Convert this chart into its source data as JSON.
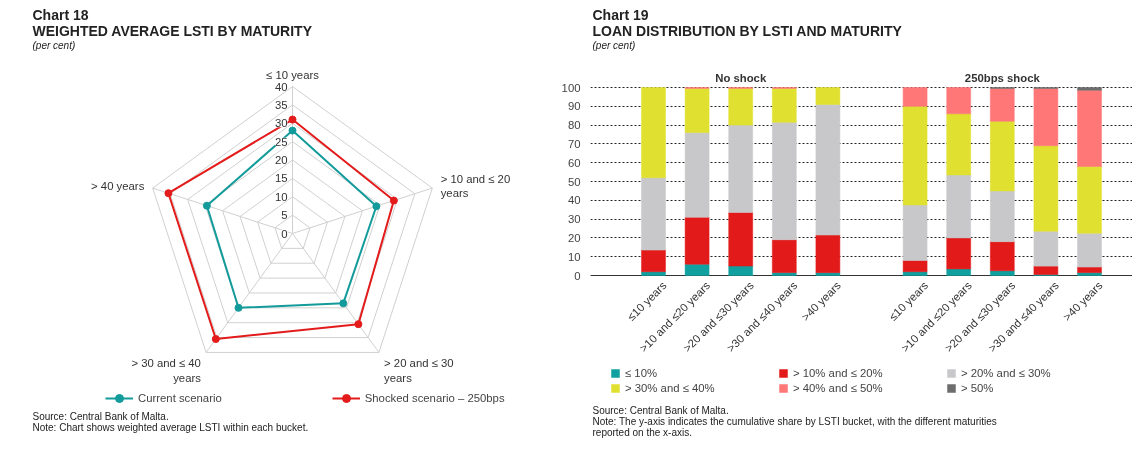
{
  "chart_data": [
    {
      "type": "radar",
      "title": "Chart 18",
      "subtitle": "WEIGHTED AVERAGE LSTI BY MATURITY",
      "ylabel": "(per cent)",
      "categories": [
        "≤ 10 years",
        "> 10 and ≤ 20 years",
        "> 20 and ≤ 30 years",
        "> 30 and ≤ 40 years",
        "> 40 years"
      ],
      "series": [
        {
          "name": "Current scenario",
          "color": "#139b9b",
          "values": [
            28,
            24,
            23.5,
            25,
            24.5
          ]
        },
        {
          "name": "Shocked scenario – 250bps",
          "color": "#e31b1b",
          "values": [
            31,
            29,
            30.5,
            35.5,
            35.5
          ]
        }
      ],
      "ylim": [
        0,
        40
      ],
      "yticks": [
        0,
        5,
        10,
        15,
        20,
        25,
        30,
        35,
        40
      ],
      "marker": "circle",
      "legend": "bottom",
      "grid": true,
      "annotations": [
        "Source: Central Bank of Malta.",
        "Note: Chart shows weighted average LSTI within each bucket."
      ]
    },
    {
      "type": "bar",
      "stacked": true,
      "title": "Chart 19",
      "subtitle": "LOAN DISTRIBUTION BY LSTI AND MATURITY",
      "ylabel": "(per cent)",
      "categories": [
        "≤10 years",
        ">10 and ≤20 years",
        ">20 and ≤30 years",
        ">30 and ≤40 years",
        ">40 years",
        null,
        "≤10 years",
        ">10 and ≤20 years",
        ">20 and ≤30 years",
        ">30 and ≤40 years",
        ">40 years"
      ],
      "series": [
        {
          "name": "≤ 10%",
          "color": "#10a0a0",
          "values": [
            2,
            6,
            5,
            1.5,
            1.5,
            null,
            2,
            3.5,
            2.5,
            0.5,
            1.5
          ]
        },
        {
          "name": "> 10% and ≤ 20%",
          "color": "#e31a1a",
          "values": [
            11.5,
            25,
            28.5,
            17.5,
            20,
            null,
            6,
            16.5,
            15.5,
            4.5,
            3
          ]
        },
        {
          "name": "> 20% and ≤ 30%",
          "color": "#c8c8ca",
          "values": [
            38.5,
            45,
            46.5,
            62.5,
            69.5,
            null,
            29.5,
            33.5,
            27,
            18.5,
            18
          ]
        },
        {
          "name": "> 30% and ≤ 40%",
          "color": "#e0e030",
          "values": [
            48,
            23.5,
            19.5,
            18,
            9,
            null,
            52.5,
            32.5,
            37,
            45.5,
            35.5
          ]
        },
        {
          "name": "> 40% and ≤ 50%",
          "color": "#ff7777",
          "values": [
            0,
            0.5,
            0.5,
            0.5,
            0,
            null,
            10,
            14,
            17.5,
            30.5,
            40.5
          ]
        },
        {
          "name": "> 50%",
          "color": "#6d6d6d",
          "values": [
            0,
            0,
            0,
            0,
            0,
            null,
            0,
            0,
            0.5,
            0.5,
            1.5
          ]
        }
      ],
      "ylim": [
        0,
        100
      ],
      "yticks": [
        0,
        10,
        20,
        30,
        40,
        50,
        60,
        70,
        80,
        90,
        100
      ],
      "grid": "y",
      "legend": "bottom",
      "annotations": [
        "No shock",
        "250bps shock",
        "Source: Central Bank of Malta.",
        "Note: The y-axis indicates the cumulative share by LSTI bucket, with the different maturities reported on the x-axis."
      ]
    }
  ]
}
